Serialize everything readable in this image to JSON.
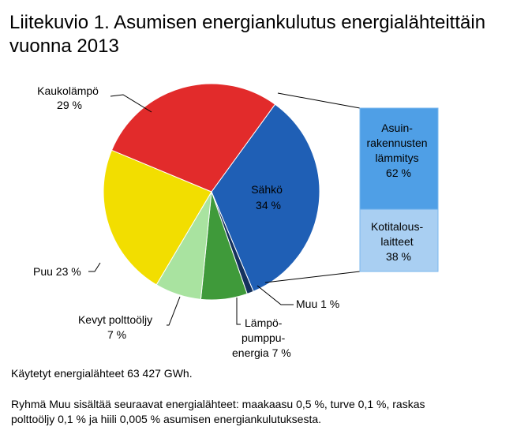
{
  "title": {
    "line1": "Liitekuvio 1. Asumisen energiankulutus energialähteittäin",
    "line2": "vuonna 2013"
  },
  "chart_data": {
    "type": "pie",
    "title": "Liitekuvio 1. Asumisen energiankulutus energialähteittäin vuonna 2013",
    "slices": [
      {
        "name": "Sähkö",
        "value": 34,
        "label": "34 %",
        "color": "#1f5fb5"
      },
      {
        "name": "Muu",
        "value": 1,
        "label": "1 %",
        "color": "#15325e"
      },
      {
        "name": "Lämpöpumppuenergia",
        "value": 7,
        "label": "7 %",
        "color": "#3f9a3a"
      },
      {
        "name": "Kevyt polttoöljy",
        "value": 7,
        "label": "7 %",
        "color": "#a9e3a0"
      },
      {
        "name": "Puu",
        "value": 23,
        "label": "23 %",
        "color": "#f2de00"
      },
      {
        "name": "Kaukolämpö",
        "value": 29,
        "label": "29 %",
        "color": "#e22b2b"
      }
    ],
    "breakdown": {
      "of": "Sähkö",
      "parts": [
        {
          "name": "Asuinrakennusten lämmitys",
          "value": 62,
          "label": "62 %",
          "color": "#4f9fe6"
        },
        {
          "name": "Kotitalouslaitteet",
          "value": 38,
          "label": "38 %",
          "color": "#a9cff2"
        }
      ]
    }
  },
  "labels": {
    "sahko": {
      "line1": "Sähkö",
      "line2": "34 %"
    },
    "kaukolampo": {
      "line1": "Kaukolämpö",
      "line2": "29 %"
    },
    "puu": "Puu 23 %",
    "kevyt": {
      "line1": "Kevyt polttoöljy",
      "line2": "7 %"
    },
    "lampopumppu": {
      "line1": "Lämpö-",
      "line2": "pumppu-",
      "line3": "energia 7 %"
    },
    "muu": "Muu 1 %",
    "asuin": {
      "line1": "Asuin-",
      "line2": "rakennusten",
      "line3": "lämmitys",
      "line4": "62 %"
    },
    "koti": {
      "line1": "Kotitalous-",
      "line2": "laitteet",
      "line3": "38 %"
    }
  },
  "footer": {
    "total": "Käytetyt energialähteet 63 427 GWh.",
    "note_line1": "Ryhmä Muu sisältää seuraavat energialähteet: maakaasu 0,5 %, turve 0,1 %, raskas",
    "note_line2": "polttoöljy 0,1 % ja hiili 0,005 % asumisen energiankulutuksesta."
  }
}
